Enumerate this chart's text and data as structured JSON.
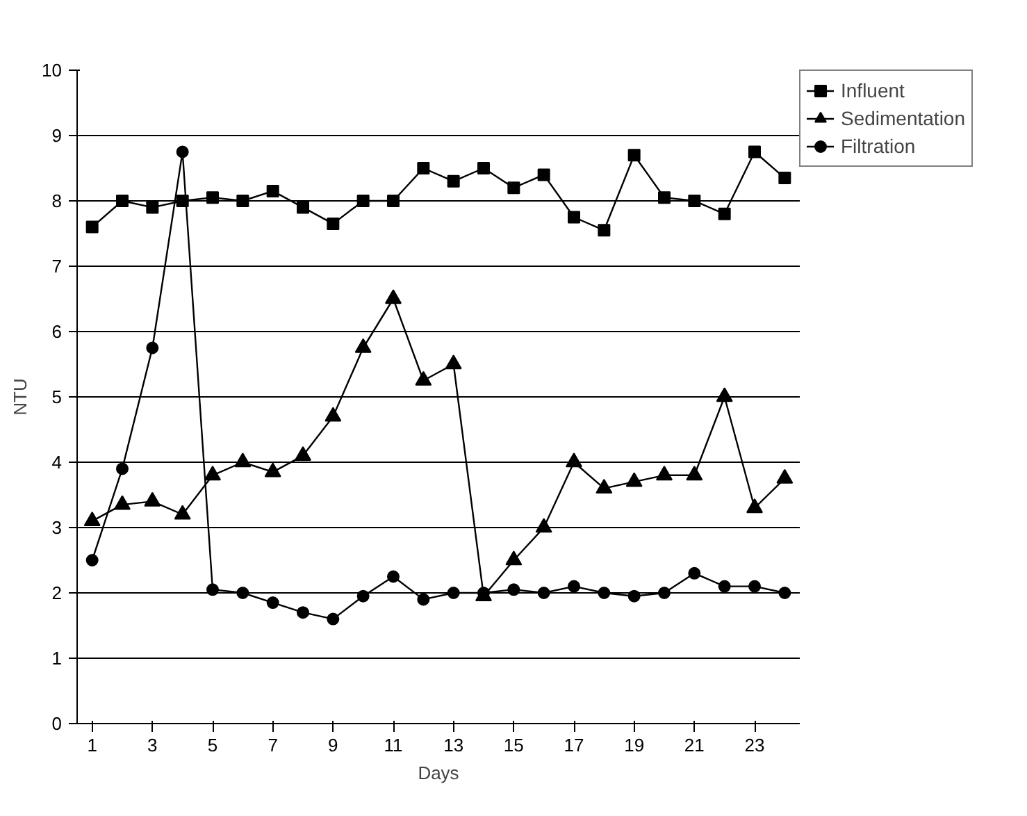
{
  "chart_data": {
    "type": "line",
    "xlabel": "Days",
    "ylabel": "NTU",
    "x": [
      1,
      2,
      3,
      4,
      5,
      6,
      7,
      8,
      9,
      10,
      11,
      12,
      13,
      14,
      15,
      16,
      17,
      18,
      19,
      20,
      21,
      22,
      23,
      24
    ],
    "xlim": [
      0.5,
      24.5
    ],
    "xticks": [
      1,
      3,
      5,
      7,
      9,
      11,
      13,
      15,
      17,
      19,
      21,
      23
    ],
    "ylim": [
      0,
      10
    ],
    "yticks": [
      0,
      1,
      2,
      3,
      4,
      5,
      6,
      7,
      8,
      9,
      10
    ],
    "grid": "y",
    "legend": "top right",
    "series": [
      {
        "name": "Influent",
        "color": "#000000",
        "marker": "square",
        "values": [
          7.6,
          8.0,
          7.9,
          8.0,
          8.05,
          8.0,
          8.15,
          7.9,
          7.65,
          8.0,
          8.0,
          8.5,
          8.3,
          8.5,
          8.2,
          8.4,
          7.75,
          7.55,
          8.7,
          8.05,
          8.0,
          7.8,
          8.75,
          8.35
        ]
      },
      {
        "name": "Sedimentation",
        "color": "#000000",
        "marker": "triangle",
        "values": [
          3.1,
          3.35,
          3.4,
          3.2,
          3.8,
          4.0,
          3.85,
          4.1,
          4.7,
          5.75,
          6.5,
          5.25,
          5.5,
          1.95,
          2.5,
          3.0,
          4.0,
          3.6,
          3.7,
          3.8,
          3.8,
          5.0,
          3.3,
          3.75
        ]
      },
      {
        "name": "Filtration",
        "color": "#000000",
        "marker": "circle",
        "values": [
          2.5,
          3.9,
          5.75,
          8.75,
          2.05,
          2.0,
          1.85,
          1.7,
          1.6,
          1.95,
          2.25,
          1.9,
          2.0,
          2.0,
          2.05,
          2.0,
          2.1,
          2.0,
          1.95,
          2.0,
          2.3,
          2.1,
          2.1,
          2.0
        ]
      }
    ]
  }
}
